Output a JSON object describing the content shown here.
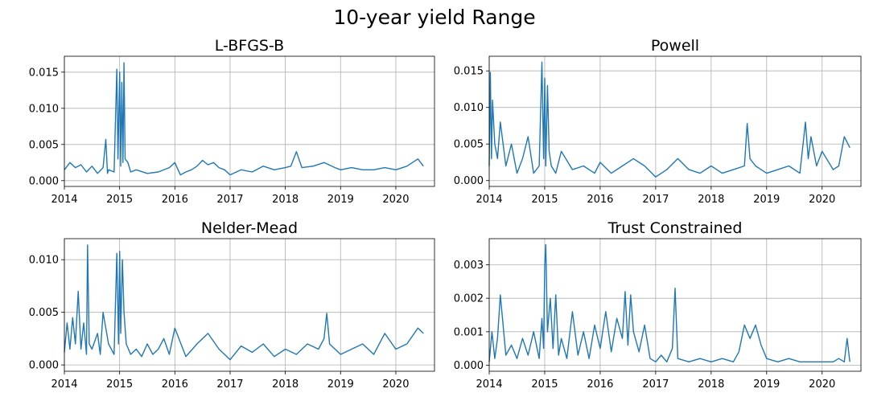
{
  "figure": {
    "title": "10-year yield Range"
  },
  "chart_data": [
    {
      "type": "line",
      "title": "L-BFGS-B",
      "xlabel": "",
      "ylabel": "",
      "xlim": [
        2014.0,
        2020.7
      ],
      "ylim": [
        -0.0008,
        0.0172
      ],
      "grid": true,
      "xticks": [
        2014,
        2015,
        2016,
        2017,
        2018,
        2019,
        2020
      ],
      "xtick_labels": [
        "2014",
        "2015",
        "2016",
        "2017",
        "2018",
        "2019",
        "2020"
      ],
      "yticks": [
        0.0,
        0.005,
        0.01,
        0.015
      ],
      "ytick_labels": [
        "0.000",
        "0.005",
        "0.010",
        "0.015"
      ],
      "series": [
        {
          "color": "#1f77b4",
          "x": [
            2014.0,
            2014.1,
            2014.2,
            2014.3,
            2014.4,
            2014.5,
            2014.6,
            2014.7,
            2014.75,
            2014.78,
            2014.8,
            2014.9,
            2014.95,
            2014.97,
            2015.0,
            2015.02,
            2015.04,
            2015.06,
            2015.08,
            2015.1,
            2015.15,
            2015.2,
            2015.3,
            2015.5,
            2015.7,
            2015.9,
            2016.0,
            2016.1,
            2016.2,
            2016.3,
            2016.4,
            2016.5,
            2016.6,
            2016.7,
            2016.8,
            2016.9,
            2017.0,
            2017.2,
            2017.4,
            2017.6,
            2017.8,
            2018.0,
            2018.1,
            2018.2,
            2018.3,
            2018.5,
            2018.7,
            2018.9,
            2019.0,
            2019.2,
            2019.4,
            2019.6,
            2019.8,
            2020.0,
            2020.2,
            2020.4,
            2020.5
          ],
          "y": [
            0.0015,
            0.0025,
            0.0018,
            0.0022,
            0.0012,
            0.002,
            0.001,
            0.0018,
            0.0057,
            0.001,
            0.0015,
            0.0012,
            0.0154,
            0.003,
            0.015,
            0.002,
            0.0136,
            0.0025,
            0.0163,
            0.003,
            0.0025,
            0.0012,
            0.0015,
            0.001,
            0.0012,
            0.0018,
            0.0025,
            0.0008,
            0.0012,
            0.0015,
            0.002,
            0.0028,
            0.0022,
            0.0025,
            0.0018,
            0.0015,
            0.0008,
            0.0015,
            0.0012,
            0.002,
            0.0015,
            0.0018,
            0.002,
            0.004,
            0.0018,
            0.002,
            0.0025,
            0.0018,
            0.0015,
            0.0018,
            0.0015,
            0.0015,
            0.0018,
            0.0015,
            0.002,
            0.003,
            0.002
          ]
        }
      ]
    },
    {
      "type": "line",
      "title": "Powell",
      "xlabel": "",
      "ylabel": "",
      "xlim": [
        2014.0,
        2020.7
      ],
      "ylim": [
        -0.0008,
        0.017
      ],
      "grid": true,
      "xticks": [
        2014,
        2015,
        2016,
        2017,
        2018,
        2019,
        2020
      ],
      "xtick_labels": [
        "2014",
        "2015",
        "2016",
        "2017",
        "2018",
        "2019",
        "2020"
      ],
      "yticks": [
        0.0,
        0.005,
        0.01,
        0.015
      ],
      "ytick_labels": [
        "0.000",
        "0.005",
        "0.010",
        "0.015"
      ],
      "series": [
        {
          "color": "#1f77b4",
          "x": [
            2014.0,
            2014.02,
            2014.04,
            2014.06,
            2014.1,
            2014.15,
            2014.2,
            2014.3,
            2014.4,
            2014.5,
            2014.6,
            2014.7,
            2014.8,
            2014.9,
            2014.95,
            2014.98,
            2015.0,
            2015.02,
            2015.05,
            2015.08,
            2015.12,
            2015.2,
            2015.3,
            2015.5,
            2015.7,
            2015.9,
            2016.0,
            2016.2,
            2016.4,
            2016.6,
            2016.8,
            2017.0,
            2017.2,
            2017.4,
            2017.6,
            2017.8,
            2018.0,
            2018.2,
            2018.4,
            2018.6,
            2018.65,
            2018.7,
            2018.8,
            2018.9,
            2019.0,
            2019.2,
            2019.4,
            2019.6,
            2019.7,
            2019.75,
            2019.8,
            2019.9,
            2020.0,
            2020.2,
            2020.3,
            2020.4,
            2020.5
          ],
          "y": [
            0.002,
            0.0148,
            0.003,
            0.011,
            0.005,
            0.003,
            0.008,
            0.002,
            0.005,
            0.001,
            0.003,
            0.006,
            0.001,
            0.002,
            0.0162,
            0.003,
            0.014,
            0.002,
            0.013,
            0.004,
            0.002,
            0.001,
            0.004,
            0.0015,
            0.002,
            0.001,
            0.0025,
            0.001,
            0.002,
            0.003,
            0.002,
            0.0005,
            0.0015,
            0.003,
            0.0015,
            0.001,
            0.002,
            0.001,
            0.0015,
            0.002,
            0.0078,
            0.003,
            0.002,
            0.0015,
            0.001,
            0.0015,
            0.002,
            0.001,
            0.008,
            0.003,
            0.006,
            0.002,
            0.004,
            0.0015,
            0.002,
            0.006,
            0.0045
          ]
        }
      ]
    },
    {
      "type": "line",
      "title": "Nelder-Mead",
      "xlabel": "",
      "ylabel": "",
      "xlim": [
        2014.0,
        2020.7
      ],
      "ylim": [
        -0.0006,
        0.012
      ],
      "grid": true,
      "xticks": [
        2014,
        2015,
        2016,
        2017,
        2018,
        2019,
        2020
      ],
      "xtick_labels": [
        "2014",
        "2015",
        "2016",
        "2017",
        "2018",
        "2019",
        "2020"
      ],
      "yticks": [
        0.0,
        0.005,
        0.01
      ],
      "ytick_labels": [
        "0.000",
        "0.005",
        "0.010"
      ],
      "series": [
        {
          "color": "#1f77b4",
          "x": [
            2014.0,
            2014.05,
            2014.1,
            2014.15,
            2014.2,
            2014.25,
            2014.3,
            2014.35,
            2014.4,
            2014.42,
            2014.45,
            2014.5,
            2014.6,
            2014.65,
            2014.7,
            2014.8,
            2014.9,
            2014.95,
            2014.98,
            2015.0,
            2015.02,
            2015.05,
            2015.08,
            2015.12,
            2015.2,
            2015.3,
            2015.4,
            2015.5,
            2015.6,
            2015.7,
            2015.8,
            2015.9,
            2016.0,
            2016.2,
            2016.4,
            2016.6,
            2016.8,
            2017.0,
            2017.2,
            2017.4,
            2017.6,
            2017.8,
            2018.0,
            2018.2,
            2018.4,
            2018.6,
            2018.7,
            2018.75,
            2018.8,
            2019.0,
            2019.2,
            2019.4,
            2019.6,
            2019.8,
            2020.0,
            2020.2,
            2020.4,
            2020.5
          ],
          "y": [
            0.0012,
            0.004,
            0.0015,
            0.0045,
            0.002,
            0.007,
            0.0015,
            0.004,
            0.001,
            0.0114,
            0.002,
            0.0015,
            0.003,
            0.001,
            0.005,
            0.002,
            0.001,
            0.0106,
            0.002,
            0.0108,
            0.003,
            0.01,
            0.005,
            0.002,
            0.001,
            0.0015,
            0.0008,
            0.002,
            0.001,
            0.0015,
            0.0025,
            0.001,
            0.0035,
            0.0008,
            0.002,
            0.003,
            0.0015,
            0.0005,
            0.0018,
            0.0012,
            0.002,
            0.0008,
            0.0015,
            0.001,
            0.002,
            0.0015,
            0.0025,
            0.0049,
            0.002,
            0.001,
            0.0015,
            0.002,
            0.001,
            0.003,
            0.0015,
            0.002,
            0.0035,
            0.003
          ]
        }
      ]
    },
    {
      "type": "line",
      "title": "Trust Constrained",
      "xlabel": "",
      "ylabel": "",
      "xlim": [
        2014.0,
        2020.7
      ],
      "ylim": [
        -0.00018,
        0.00378
      ],
      "grid": true,
      "xticks": [
        2014,
        2015,
        2016,
        2017,
        2018,
        2019,
        2020
      ],
      "xtick_labels": [
        "2014",
        "2015",
        "2016",
        "2017",
        "2018",
        "2019",
        "2020"
      ],
      "yticks": [
        0.0,
        0.001,
        0.002,
        0.003
      ],
      "ytick_labels": [
        "0.000",
        "0.001",
        "0.002",
        "0.003"
      ],
      "series": [
        {
          "color": "#1f77b4",
          "x": [
            2014.0,
            2014.05,
            2014.1,
            2014.15,
            2014.2,
            2014.3,
            2014.4,
            2014.5,
            2014.6,
            2014.7,
            2014.8,
            2014.9,
            2014.95,
            2014.98,
            2015.0,
            2015.02,
            2015.05,
            2015.1,
            2015.15,
            2015.2,
            2015.25,
            2015.3,
            2015.4,
            2015.5,
            2015.6,
            2015.7,
            2015.8,
            2015.9,
            2016.0,
            2016.1,
            2016.2,
            2016.3,
            2016.4,
            2016.45,
            2016.5,
            2016.55,
            2016.6,
            2016.7,
            2016.8,
            2016.9,
            2017.0,
            2017.1,
            2017.2,
            2017.3,
            2017.35,
            2017.4,
            2017.6,
            2017.8,
            2018.0,
            2018.2,
            2018.4,
            2018.5,
            2018.6,
            2018.7,
            2018.8,
            2018.9,
            2019.0,
            2019.2,
            2019.4,
            2019.6,
            2019.8,
            2020.0,
            2020.2,
            2020.3,
            2020.4,
            2020.45,
            2020.5
          ],
          "y": [
            0.0001,
            0.001,
            0.0002,
            0.0008,
            0.0021,
            0.0003,
            0.0006,
            0.0002,
            0.0008,
            0.0003,
            0.001,
            0.0002,
            0.0014,
            0.0005,
            0.003,
            0.0036,
            0.001,
            0.002,
            0.0005,
            0.0021,
            0.0003,
            0.0008,
            0.0002,
            0.0016,
            0.0003,
            0.001,
            0.0002,
            0.0012,
            0.0005,
            0.0016,
            0.0004,
            0.0014,
            0.0008,
            0.0022,
            0.0006,
            0.0021,
            0.001,
            0.0004,
            0.0012,
            0.0002,
            0.0001,
            0.0003,
            0.0001,
            0.0005,
            0.0023,
            0.0002,
            0.0001,
            0.0002,
            0.0001,
            0.0002,
            0.0001,
            0.0004,
            0.0012,
            0.0008,
            0.0012,
            0.0006,
            0.0002,
            0.0001,
            0.0002,
            0.0001,
            0.0001,
            0.0001,
            0.0001,
            0.0002,
            0.0001,
            0.0008,
            0.0001
          ]
        }
      ]
    }
  ]
}
